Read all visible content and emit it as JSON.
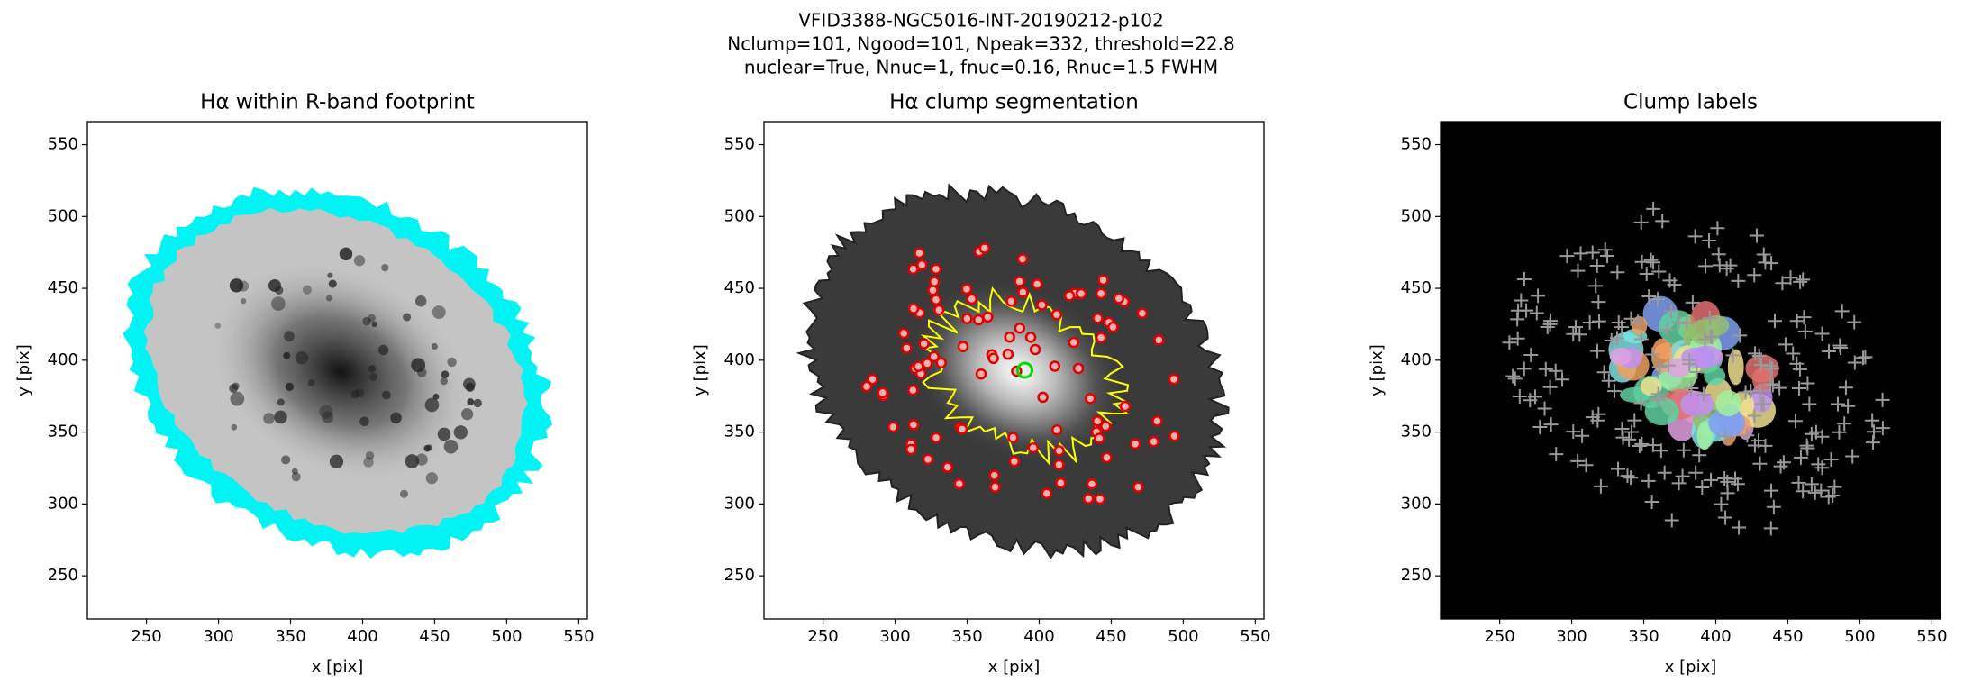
{
  "suptitle": [
    "VFID3388-NGC5016-INT-20190212-p102",
    "Nclump=101, Ngood=101, Npeak=332, threshold=22.8",
    "nuclear=True, Nnuc=1, fnuc=0.16, Rnuc=1.5 FWHM"
  ],
  "chart_data": [
    {
      "type": "image",
      "title": "Hα within R-band footprint",
      "xlabel": "x [pix]",
      "ylabel": "y [pix]",
      "xlim": [
        209,
        556
      ],
      "ylim": [
        220,
        566
      ],
      "xticks": [
        250,
        300,
        350,
        400,
        450,
        500,
        550
      ],
      "yticks": [
        250,
        300,
        350,
        400,
        450,
        500,
        550
      ]
    },
    {
      "type": "image",
      "title": "Hα clump segmentation",
      "xlabel": "x [pix]",
      "ylabel": "y [pix]",
      "xlim": [
        209,
        556
      ],
      "ylim": [
        220,
        566
      ],
      "xticks": [
        250,
        300,
        350,
        400,
        450,
        500,
        550
      ],
      "yticks": [
        250,
        300,
        350,
        400,
        450,
        500,
        550
      ]
    },
    {
      "type": "image",
      "title": "Clump labels",
      "xlabel": "x [pix]",
      "ylabel": "y [pix]",
      "xlim": [
        209,
        556
      ],
      "ylim": [
        220,
        566
      ],
      "xticks": [
        250,
        300,
        350,
        400,
        450,
        500,
        550
      ],
      "yticks": [
        250,
        300,
        350,
        400,
        450,
        500,
        550
      ]
    }
  ]
}
